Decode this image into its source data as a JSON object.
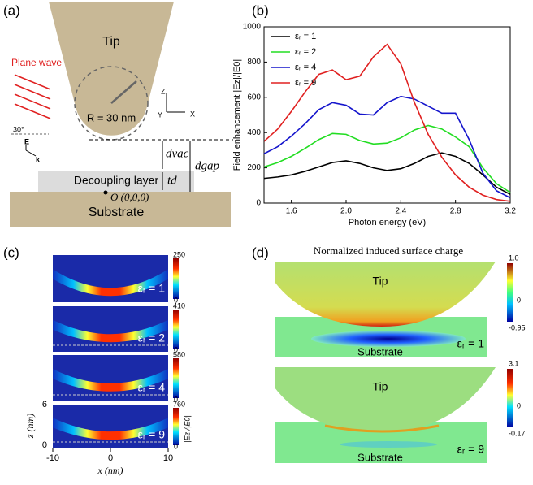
{
  "panels": {
    "a": {
      "label": "(a)",
      "tip": "Tip",
      "plane_wave": "Plane wave",
      "radius": "R = 30 nm",
      "axis_z": "Z",
      "axis_y": "Y",
      "axis_x": "X",
      "angle": "30°",
      "e_vec": "E",
      "k_vec": "k",
      "d_vac": "dvac",
      "d_gap": "dgap",
      "t_d": "td",
      "layer": "Decoupling layer",
      "origin": "O (0,0,0)",
      "substrate": "Substrate"
    },
    "b": {
      "label": "(b)"
    },
    "c": {
      "label": "(c)",
      "colorbars": [
        [
          250,
          0
        ],
        [
          410,
          0
        ],
        [
          580,
          0
        ],
        [
          760,
          0
        ]
      ],
      "eps": [
        "εᵣ = 1",
        "εᵣ = 2",
        "εᵣ = 4",
        "εᵣ = 9"
      ],
      "colorbar_title": "|Ez|/|E0|",
      "y_label": "z (nm)",
      "y_ticks": [
        6,
        0
      ],
      "x_label": "x (nm)",
      "x_ticks": [
        -10,
        0,
        10
      ]
    },
    "d": {
      "label": "(d)",
      "title": "Normalized induced surface charge",
      "tip": [
        "Tip",
        "Tip"
      ],
      "substrate": [
        "Substrate",
        "Substrate"
      ],
      "eps": [
        "εᵣ = 1",
        "εᵣ = 9"
      ],
      "colorbars": [
        [
          "1.0",
          0,
          -0.95
        ],
        [
          3.1,
          0,
          -0.17
        ]
      ]
    }
  },
  "chart_data": {
    "type": "line",
    "x_label": "Photon energy (eV)",
    "y_label": "Field enhancement |Ez|/|E0|",
    "x": [
      1.4,
      1.5,
      1.6,
      1.7,
      1.8,
      1.9,
      2.0,
      2.1,
      2.2,
      2.3,
      2.4,
      2.5,
      2.6,
      2.7,
      2.8,
      2.9,
      3.0,
      3.1,
      3.2
    ],
    "series": [
      {
        "name": "εᵣ = 1",
        "color": "#000000",
        "values": [
          140,
          148,
          160,
          180,
          205,
          230,
          240,
          225,
          200,
          185,
          195,
          225,
          265,
          285,
          265,
          225,
          160,
          90,
          50
        ]
      },
      {
        "name": "εᵣ = 2",
        "color": "#22dd22",
        "values": [
          205,
          230,
          265,
          310,
          360,
          395,
          390,
          355,
          335,
          340,
          370,
          415,
          440,
          420,
          375,
          320,
          200,
          110,
          60
        ]
      },
      {
        "name": "εᵣ = 4",
        "color": "#1515cc",
        "values": [
          280,
          320,
          380,
          450,
          530,
          570,
          555,
          505,
          500,
          570,
          605,
          590,
          550,
          510,
          510,
          360,
          170,
          70,
          30
        ]
      },
      {
        "name": "εᵣ = 9",
        "color": "#e02020",
        "values": [
          350,
          420,
          520,
          630,
          730,
          755,
          700,
          720,
          830,
          900,
          790,
          570,
          390,
          260,
          160,
          90,
          45,
          20,
          10
        ]
      }
    ],
    "xlim": [
      1.4,
      3.2
    ],
    "ylim": [
      0,
      1000
    ],
    "xticks": [
      1.6,
      {
        "value": 2,
        "label": "2.0"
      },
      2.4,
      2.8,
      3.2
    ],
    "yticks": [
      0,
      200,
      400,
      600,
      800,
      1000
    ],
    "legend": "top-left"
  }
}
